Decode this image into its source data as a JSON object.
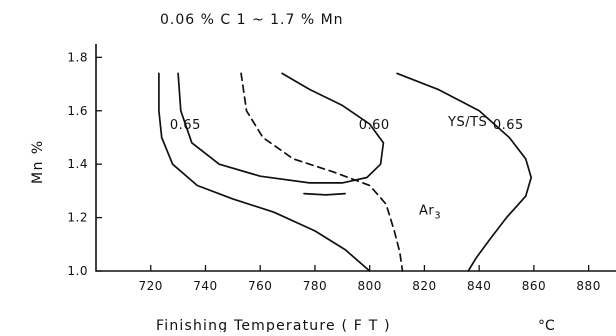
{
  "chart_data": {
    "type": "line",
    "title": "0.06 % C    1 ~ 1.7 % Mn",
    "xlabel": "Finishing   Temperature   ( F T )",
    "xunit": "°C",
    "ylabel": "Mn   %",
    "xlim": [
      700,
      890
    ],
    "ylim": [
      1.0,
      1.85
    ],
    "x_ticks": [
      720,
      740,
      760,
      780,
      800,
      820,
      840,
      860,
      880
    ],
    "y_ticks": [
      1.0,
      1.2,
      1.4,
      1.6,
      1.8
    ],
    "x_tick_labels": [
      "720",
      "740",
      "760",
      "780",
      "800",
      "820",
      "840",
      "860",
      "880"
    ],
    "y_tick_labels": [
      "1.0",
      "1.2",
      "1.4",
      "1.6",
      "1.8"
    ],
    "grid": false,
    "ratio_label": "YS/TS",
    "series": [
      {
        "style": "solid",
        "points": [
          [
            723,
            1.74
          ],
          [
            723,
            1.6
          ],
          [
            724,
            1.5
          ],
          [
            728,
            1.4
          ],
          [
            737,
            1.32
          ],
          [
            750,
            1.27
          ],
          [
            765,
            1.22
          ],
          [
            780,
            1.15
          ],
          [
            791,
            1.08
          ],
          [
            800,
            1.0
          ]
        ]
      },
      {
        "style": "solid",
        "points": [
          [
            730,
            1.74
          ],
          [
            731,
            1.6
          ],
          [
            735,
            1.48
          ],
          [
            745,
            1.4
          ],
          [
            760,
            1.355
          ],
          [
            778,
            1.33
          ],
          [
            790,
            1.33
          ],
          [
            799,
            1.35
          ],
          [
            804,
            1.4
          ],
          [
            805,
            1.48
          ],
          [
            800,
            1.55
          ],
          [
            790,
            1.62
          ],
          [
            778,
            1.68
          ],
          [
            768,
            1.74
          ]
        ]
      },
      {
        "style": "dashed",
        "points": [
          [
            753,
            1.74
          ],
          [
            755,
            1.6
          ],
          [
            761,
            1.5
          ],
          [
            772,
            1.42
          ],
          [
            787,
            1.37
          ],
          [
            800,
            1.32
          ],
          [
            806,
            1.25
          ],
          [
            809,
            1.15
          ],
          [
            811,
            1.07
          ],
          [
            812,
            1.0
          ]
        ]
      },
      {
        "style": "solid",
        "points": [
          [
            810,
            1.74
          ],
          [
            825,
            1.68
          ],
          [
            840,
            1.6
          ],
          [
            851,
            1.5
          ],
          [
            857,
            1.42
          ],
          [
            859,
            1.35
          ],
          [
            857,
            1.28
          ],
          [
            850,
            1.2
          ],
          [
            844,
            1.12
          ],
          [
            839,
            1.05
          ],
          [
            836,
            1.0
          ]
        ]
      },
      {
        "style": "solid",
        "points": [
          [
            791,
            1.29
          ],
          [
            784,
            1.285
          ],
          [
            776,
            1.29
          ]
        ]
      }
    ],
    "annotations": [
      {
        "text": "0.65",
        "x": 727,
        "y": 1.55
      },
      {
        "text": "0.60",
        "x": 796,
        "y": 1.55
      },
      {
        "text": "0.65",
        "x": 845,
        "y": 1.55
      },
      {
        "text": "Ar3",
        "x": 818,
        "y": 1.23
      }
    ]
  }
}
